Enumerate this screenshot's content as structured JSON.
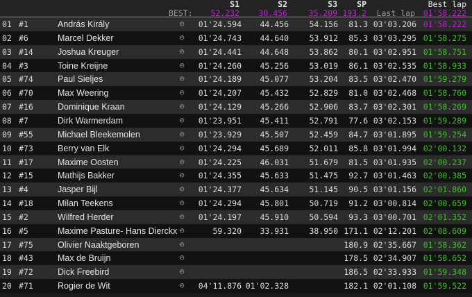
{
  "header": {
    "s1": "S1",
    "s2": "S2",
    "s3": "S3",
    "sp": "SP",
    "best_label": "BEST:",
    "best_s1": "52.232",
    "best_s2": "30.456",
    "best_s3": "35.209",
    "best_sp": "193.2",
    "last_lap": "Last lap",
    "best_lap": "Best lap",
    "best_lap_value": "01'58.222"
  },
  "colors": {
    "overall_best": "#c21fd6",
    "personal_best": "#3fbf2a"
  },
  "row_icon": "timer-icon",
  "rows": [
    {
      "pos": "01",
      "num": "#1",
      "name": "András Király",
      "s1": "01'24.594",
      "s2": "44.456",
      "s3": "54.156",
      "sp": "81.3",
      "last": "03'03.206",
      "best": "01'58.222",
      "best_overall": true
    },
    {
      "pos": "02",
      "num": "#6",
      "name": "Marcel Dekker",
      "s1": "01'24.743",
      "s2": "44.640",
      "s3": "53.912",
      "sp": "85.3",
      "last": "03'03.295",
      "best": "01'58.275"
    },
    {
      "pos": "03",
      "num": "#14",
      "name": "Joshua Kreuger",
      "s1": "01'24.441",
      "s2": "44.648",
      "s3": "53.862",
      "sp": "80.1",
      "last": "03'02.951",
      "best": "01'58.751"
    },
    {
      "pos": "04",
      "num": "#3",
      "name": "Toine Kreijne",
      "s1": "01'24.260",
      "s2": "45.256",
      "s3": "53.019",
      "sp": "86.1",
      "last": "03'02.535",
      "best": "01'58.933"
    },
    {
      "pos": "05",
      "num": "#74",
      "name": "Paul Sieljes",
      "s1": "01'24.189",
      "s2": "45.077",
      "s3": "53.204",
      "sp": "83.5",
      "last": "03'02.470",
      "best": "01'59.279"
    },
    {
      "pos": "06",
      "num": "#70",
      "name": "Max Weering",
      "s1": "01'24.207",
      "s2": "45.432",
      "s3": "52.829",
      "sp": "81.0",
      "last": "03'02.468",
      "best": "01'58.760"
    },
    {
      "pos": "07",
      "num": "#16",
      "name": "Dominique Kraan",
      "s1": "01'24.129",
      "s2": "45.266",
      "s3": "52.906",
      "sp": "83.7",
      "last": "03'02.301",
      "best": "01'58.269"
    },
    {
      "pos": "08",
      "num": "#7",
      "name": "Dirk Warmerdam",
      "s1": "01'23.951",
      "s2": "45.411",
      "s3": "52.791",
      "sp": "77.6",
      "last": "03'02.153",
      "best": "01'59.289"
    },
    {
      "pos": "09",
      "num": "#55",
      "name": "Michael Bleekemolen",
      "s1": "01'23.929",
      "s2": "45.507",
      "s3": "52.459",
      "sp": "84.7",
      "last": "03'01.895",
      "best": "01'59.254"
    },
    {
      "pos": "10",
      "num": "#73",
      "name": "Berry van Elk",
      "s1": "01'24.294",
      "s2": "45.689",
      "s3": "52.011",
      "sp": "85.8",
      "last": "03'01.994",
      "best": "02'00.132"
    },
    {
      "pos": "11",
      "num": "#17",
      "name": "Maxime Oosten",
      "s1": "01'24.225",
      "s2": "46.031",
      "s3": "51.679",
      "sp": "81.5",
      "last": "03'01.935",
      "best": "02'00.237"
    },
    {
      "pos": "12",
      "num": "#15",
      "name": "Mathijs Bakker",
      "s1": "01'24.355",
      "s2": "45.633",
      "s3": "51.475",
      "sp": "92.7",
      "last": "03'01.463",
      "best": "02'00.385"
    },
    {
      "pos": "13",
      "num": "#4",
      "name": "Jasper Bijl",
      "s1": "01'24.377",
      "s2": "45.634",
      "s3": "51.145",
      "sp": "90.5",
      "last": "03'01.156",
      "best": "02'01.860"
    },
    {
      "pos": "14",
      "num": "#18",
      "name": "Milan Teekens",
      "s1": "01'24.294",
      "s2": "45.801",
      "s3": "50.719",
      "sp": "91.2",
      "last": "03'00.814",
      "best": "02'00.659"
    },
    {
      "pos": "15",
      "num": "#2",
      "name": "Wilfred Herder",
      "s1": "01'24.197",
      "s2": "45.910",
      "s3": "50.594",
      "sp": "93.3",
      "last": "03'00.701",
      "best": "02'01.352"
    },
    {
      "pos": "16",
      "num": "#5",
      "name": "Maxime Pasture- Hans Dierckx",
      "s1": "59.320",
      "s2": "33.931",
      "s3": "38.950",
      "sp": "171.1",
      "last": "02'12.201",
      "best": "02'08.609"
    },
    {
      "pos": "17",
      "num": "#75",
      "name": "Olivier Naaktgeboren",
      "s1": "",
      "s2": "",
      "s3": "",
      "sp": "180.9",
      "last": "02'35.667",
      "best": "01'58.362"
    },
    {
      "pos": "18",
      "num": "#43",
      "name": "Max de Bruijn",
      "s1": "",
      "s2": "",
      "s3": "",
      "sp": "178.5",
      "last": "02'34.907",
      "best": "01'58.652"
    },
    {
      "pos": "19",
      "num": "#72",
      "name": "Dick Freebird",
      "s1": "",
      "s2": "",
      "s3": "",
      "sp": "186.5",
      "last": "02'33.933",
      "best": "01'59.348"
    },
    {
      "pos": "20",
      "num": "#71",
      "name": "Rogier de Wit",
      "s1": "04'11.876",
      "s2": "01'02.328",
      "s3": "",
      "sp": "182.1",
      "last": "02'01.108",
      "best": "01'59.522"
    }
  ]
}
